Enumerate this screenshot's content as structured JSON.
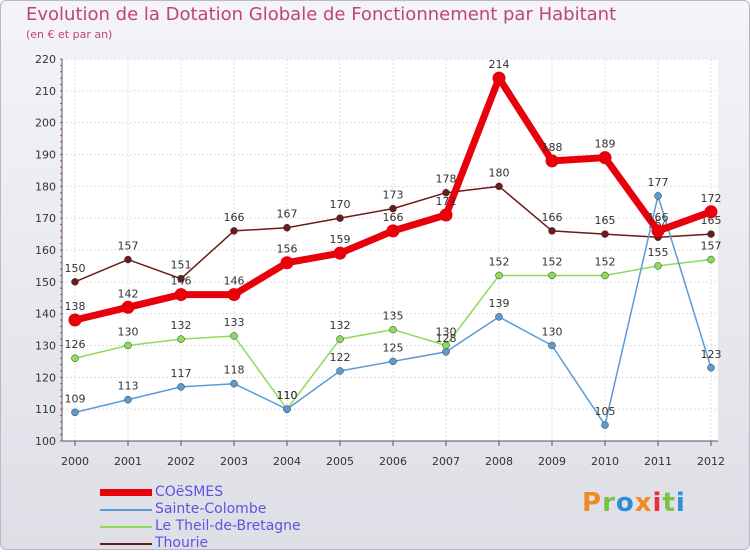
{
  "header": {
    "title": "Evolution de la Dotation Globale de Fonctionnement par Habitant",
    "subtitle": "(en € et par an)"
  },
  "brand": {
    "text": "Proxiti",
    "colors": [
      "#f08a24",
      "#7cc242",
      "#2e8fd6",
      "#f08a24",
      "#e8303a",
      "#7cc242",
      "#2e8fd6"
    ]
  },
  "chart_data": {
    "type": "line",
    "categories": [
      "2000",
      "2001",
      "2002",
      "2003",
      "2004",
      "2005",
      "2006",
      "2007",
      "2008",
      "2009",
      "2010",
      "2011",
      "2012"
    ],
    "ylim": [
      100,
      220
    ],
    "yticks": [
      100,
      110,
      120,
      130,
      140,
      150,
      160,
      170,
      180,
      190,
      200,
      210,
      220
    ],
    "grid": true,
    "legend_position": "bottom-left",
    "series": [
      {
        "name": "Thourie",
        "color": "#6e1a1a",
        "highlight": false,
        "values": [
          150,
          157,
          151,
          166,
          167,
          170,
          173,
          178,
          180,
          166,
          165,
          164,
          165
        ],
        "labels": [
          "150",
          "157",
          "151",
          "166",
          "167",
          "170",
          "173",
          "178",
          "180",
          "166",
          "165",
          "164",
          "165"
        ]
      },
      {
        "name": "Le Theil-de-Bretagne",
        "color": "#8bdc5a",
        "highlight": false,
        "values": [
          126,
          130,
          132,
          133,
          110,
          132,
          135,
          130,
          152,
          152,
          152,
          155,
          157
        ],
        "labels": [
          "126",
          "130",
          "132",
          "133",
          "110",
          "132",
          "135",
          "130",
          "152",
          "152",
          "152",
          "155",
          "157"
        ]
      },
      {
        "name": "Sainte-Colombe",
        "color": "#5b9bd5",
        "highlight": false,
        "values": [
          109,
          113,
          117,
          118,
          110,
          122,
          125,
          128,
          139,
          130,
          105,
          177,
          123
        ],
        "labels": [
          "109",
          "113",
          "117",
          "118",
          "110",
          "122",
          "125",
          "128",
          "139",
          "130",
          "105",
          "177",
          "123"
        ]
      },
      {
        "name": "COëSMES",
        "color": "#e8000b",
        "highlight": true,
        "values": [
          138,
          142,
          146,
          146,
          156,
          159,
          166,
          171,
          214,
          188,
          189,
          166,
          172
        ],
        "labels": [
          "138",
          "142",
          "146",
          "146",
          "156",
          "159",
          "166",
          "171",
          "214",
          "188",
          "189",
          "166",
          "172"
        ]
      }
    ]
  },
  "legend": {
    "items": [
      {
        "label": "COëSMES",
        "color": "#e8000b",
        "bold": true
      },
      {
        "label": "Sainte-Colombe",
        "color": "#5b9bd5",
        "bold": false
      },
      {
        "label": "Le Theil-de-Bretagne",
        "color": "#8bdc5a",
        "bold": false
      },
      {
        "label": "Thourie",
        "color": "#6e1a1a",
        "bold": false
      }
    ]
  }
}
